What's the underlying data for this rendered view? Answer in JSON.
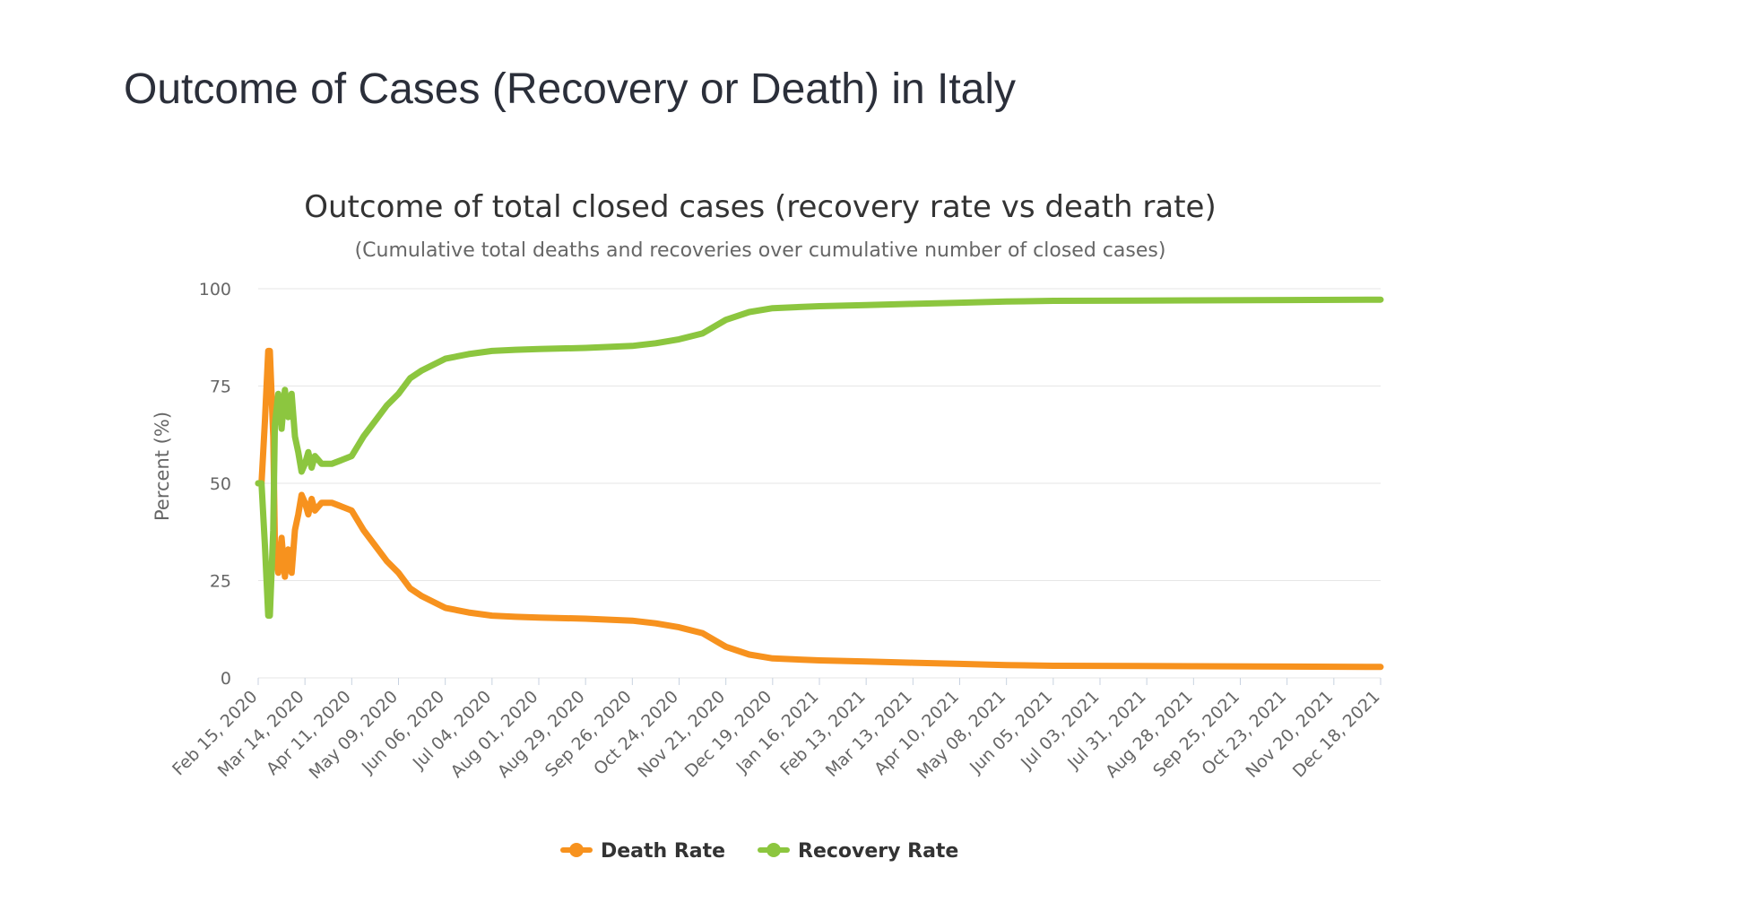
{
  "page": {
    "heading": "Outcome of Cases (Recovery or Death) in Italy"
  },
  "colors": {
    "death": "#f7921e",
    "recovery": "#8cc63f"
  },
  "chart_data": {
    "type": "line",
    "title": "Outcome of total closed cases (recovery rate vs death rate)",
    "subtitle": "(Cumulative total deaths and recoveries over cumulative number of closed cases)",
    "xlabel": "",
    "ylabel": "Percent (%)",
    "ylim": [
      0,
      100
    ],
    "yticks": [
      0,
      25,
      50,
      75,
      100
    ],
    "xlim": [
      "2020-02-15",
      "2021-12-18"
    ],
    "x_tick_labels": [
      "Feb 15, 2020",
      "Mar 14, 2020",
      "Apr 11, 2020",
      "May 09, 2020",
      "Jun 06, 2020",
      "Jul 04, 2020",
      "Aug 01, 2020",
      "Aug 29, 2020",
      "Sep 26, 2020",
      "Oct 24, 2020",
      "Nov 21, 2020",
      "Dec 19, 2020",
      "Jan 16, 2021",
      "Feb 13, 2021",
      "Mar 13, 2021",
      "Apr 10, 2021",
      "May 08, 2021",
      "Jun 05, 2021",
      "Jul 03, 2021",
      "Jul 31, 2021",
      "Aug 28, 2021",
      "Sep 25, 2021",
      "Oct 23, 2021",
      "Nov 20, 2021",
      "Dec 18, 2021"
    ],
    "grid": true,
    "legend_position": "bottom-center",
    "series": [
      {
        "name": "Death Rate",
        "color": "#f7921e",
        "points": [
          [
            "2020-02-15",
            50
          ],
          [
            "2020-02-17",
            50
          ],
          [
            "2020-02-19",
            66
          ],
          [
            "2020-02-21",
            84
          ],
          [
            "2020-02-22",
            84
          ],
          [
            "2020-02-24",
            62
          ],
          [
            "2020-02-25",
            35
          ],
          [
            "2020-02-27",
            27
          ],
          [
            "2020-02-29",
            36
          ],
          [
            "2020-03-02",
            26
          ],
          [
            "2020-03-04",
            33
          ],
          [
            "2020-03-06",
            27
          ],
          [
            "2020-03-08",
            38
          ],
          [
            "2020-03-10",
            42
          ],
          [
            "2020-03-12",
            47
          ],
          [
            "2020-03-14",
            45
          ],
          [
            "2020-03-16",
            42
          ],
          [
            "2020-03-18",
            46
          ],
          [
            "2020-03-20",
            43
          ],
          [
            "2020-03-24",
            45
          ],
          [
            "2020-03-30",
            45
          ],
          [
            "2020-04-05",
            44
          ],
          [
            "2020-04-11",
            43
          ],
          [
            "2020-04-18",
            38
          ],
          [
            "2020-04-25",
            34
          ],
          [
            "2020-05-02",
            30
          ],
          [
            "2020-05-09",
            27
          ],
          [
            "2020-05-16",
            23
          ],
          [
            "2020-05-23",
            21
          ],
          [
            "2020-05-30",
            19.5
          ],
          [
            "2020-06-06",
            18
          ],
          [
            "2020-06-20",
            16.8
          ],
          [
            "2020-07-04",
            16
          ],
          [
            "2020-07-18",
            15.7
          ],
          [
            "2020-08-01",
            15.5
          ],
          [
            "2020-08-29",
            15.2
          ],
          [
            "2020-09-26",
            14.7
          ],
          [
            "2020-10-10",
            14
          ],
          [
            "2020-10-24",
            13
          ],
          [
            "2020-11-07",
            11.5
          ],
          [
            "2020-11-21",
            8
          ],
          [
            "2020-12-05",
            6
          ],
          [
            "2020-12-19",
            5
          ],
          [
            "2021-01-16",
            4.5
          ],
          [
            "2021-02-13",
            4.2
          ],
          [
            "2021-03-13",
            3.9
          ],
          [
            "2021-04-10",
            3.6
          ],
          [
            "2021-05-08",
            3.3
          ],
          [
            "2021-06-05",
            3.1
          ],
          [
            "2021-08-28",
            3.0
          ],
          [
            "2021-10-23",
            2.9
          ],
          [
            "2021-12-18",
            2.8
          ]
        ]
      },
      {
        "name": "Recovery Rate",
        "color": "#8cc63f",
        "points": [
          [
            "2020-02-15",
            50
          ],
          [
            "2020-02-17",
            50
          ],
          [
            "2020-02-19",
            34
          ],
          [
            "2020-02-21",
            16
          ],
          [
            "2020-02-22",
            16
          ],
          [
            "2020-02-24",
            38
          ],
          [
            "2020-02-25",
            65
          ],
          [
            "2020-02-27",
            73
          ],
          [
            "2020-02-29",
            64
          ],
          [
            "2020-03-02",
            74
          ],
          [
            "2020-03-04",
            67
          ],
          [
            "2020-03-06",
            73
          ],
          [
            "2020-03-08",
            62
          ],
          [
            "2020-03-10",
            58
          ],
          [
            "2020-03-12",
            53
          ],
          [
            "2020-03-14",
            55
          ],
          [
            "2020-03-16",
            58
          ],
          [
            "2020-03-18",
            54
          ],
          [
            "2020-03-20",
            57
          ],
          [
            "2020-03-24",
            55
          ],
          [
            "2020-03-30",
            55
          ],
          [
            "2020-04-05",
            56
          ],
          [
            "2020-04-11",
            57
          ],
          [
            "2020-04-18",
            62
          ],
          [
            "2020-04-25",
            66
          ],
          [
            "2020-05-02",
            70
          ],
          [
            "2020-05-09",
            73
          ],
          [
            "2020-05-16",
            77
          ],
          [
            "2020-05-23",
            79
          ],
          [
            "2020-05-30",
            80.5
          ],
          [
            "2020-06-06",
            82
          ],
          [
            "2020-06-20",
            83.2
          ],
          [
            "2020-07-04",
            84
          ],
          [
            "2020-07-18",
            84.3
          ],
          [
            "2020-08-01",
            84.5
          ],
          [
            "2020-08-29",
            84.8
          ],
          [
            "2020-09-26",
            85.3
          ],
          [
            "2020-10-10",
            86
          ],
          [
            "2020-10-24",
            87
          ],
          [
            "2020-11-07",
            88.5
          ],
          [
            "2020-11-21",
            92
          ],
          [
            "2020-12-05",
            94
          ],
          [
            "2020-12-19",
            95
          ],
          [
            "2021-01-16",
            95.5
          ],
          [
            "2021-02-13",
            95.8
          ],
          [
            "2021-03-13",
            96.1
          ],
          [
            "2021-04-10",
            96.4
          ],
          [
            "2021-05-08",
            96.7
          ],
          [
            "2021-06-05",
            96.9
          ],
          [
            "2021-08-28",
            97.0
          ],
          [
            "2021-10-23",
            97.1
          ],
          [
            "2021-12-18",
            97.2
          ]
        ]
      }
    ]
  }
}
